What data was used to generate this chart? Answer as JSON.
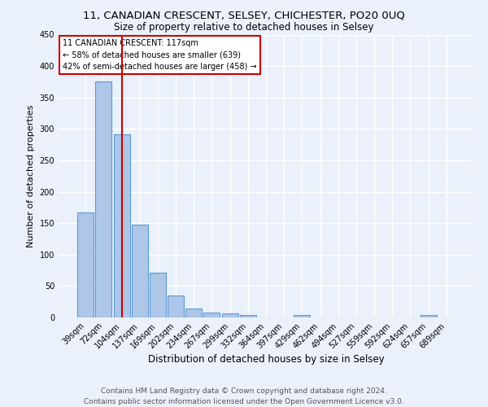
{
  "title": "11, CANADIAN CRESCENT, SELSEY, CHICHESTER, PO20 0UQ",
  "subtitle": "Size of property relative to detached houses in Selsey",
  "xlabel": "Distribution of detached houses by size in Selsey",
  "ylabel": "Number of detached properties",
  "footer_line1": "Contains HM Land Registry data © Crown copyright and database right 2024.",
  "footer_line2": "Contains public sector information licensed under the Open Government Licence v3.0.",
  "categories": [
    "39sqm",
    "72sqm",
    "104sqm",
    "137sqm",
    "169sqm",
    "202sqm",
    "234sqm",
    "267sqm",
    "299sqm",
    "332sqm",
    "364sqm",
    "397sqm",
    "429sqm",
    "462sqm",
    "494sqm",
    "527sqm",
    "559sqm",
    "592sqm",
    "624sqm",
    "657sqm",
    "689sqm"
  ],
  "values": [
    167,
    375,
    291,
    147,
    71,
    35,
    14,
    8,
    7,
    4,
    0,
    0,
    4,
    0,
    0,
    0,
    0,
    0,
    0,
    4,
    0
  ],
  "bar_color": "#aec6e8",
  "bar_edge_color": "#5b9bd5",
  "red_line_color": "#cc0000",
  "annotation_text": "11 CANADIAN CRESCENT: 117sqm\n← 58% of detached houses are smaller (639)\n42% of semi-detached houses are larger (458) →",
  "annotation_box_color": "#ffffff",
  "annotation_box_edge_color": "#cc0000",
  "ylim": [
    0,
    450
  ],
  "yticks": [
    0,
    50,
    100,
    150,
    200,
    250,
    300,
    350,
    400,
    450
  ],
  "background_color": "#eaf1fb",
  "axes_background_color": "#eaf1fb",
  "grid_color": "#ffffff",
  "title_fontsize": 9.5,
  "subtitle_fontsize": 8.5,
  "xlabel_fontsize": 8.5,
  "ylabel_fontsize": 8,
  "tick_fontsize": 7,
  "annotation_fontsize": 7,
  "footer_fontsize": 6.5
}
